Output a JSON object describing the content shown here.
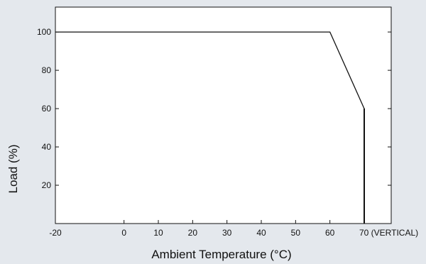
{
  "chart_data": {
    "type": "line",
    "title": "",
    "xlabel": "Ambient Temperature (°C)",
    "ylabel": "Load (%)",
    "xlim": [
      -20,
      70
    ],
    "ylim": [
      0,
      113
    ],
    "x_ticks": [
      {
        "value": -20,
        "label": "-20"
      },
      {
        "value": 0,
        "label": "0"
      },
      {
        "value": 10,
        "label": "10"
      },
      {
        "value": 20,
        "label": "20"
      },
      {
        "value": 30,
        "label": "30"
      },
      {
        "value": 40,
        "label": "40"
      },
      {
        "value": 50,
        "label": "50"
      },
      {
        "value": 60,
        "label": "60"
      },
      {
        "value": 70,
        "label": "70 (VERTICAL)"
      }
    ],
    "y_ticks": [
      {
        "value": 20,
        "label": "20"
      },
      {
        "value": 40,
        "label": "40"
      },
      {
        "value": 60,
        "label": "60"
      },
      {
        "value": 80,
        "label": "80"
      },
      {
        "value": 100,
        "label": "100"
      }
    ],
    "grid": false,
    "legend": "none",
    "series": [
      {
        "x": [
          -20,
          60,
          70,
          70
        ],
        "y": [
          100,
          100,
          60,
          0
        ]
      }
    ]
  }
}
